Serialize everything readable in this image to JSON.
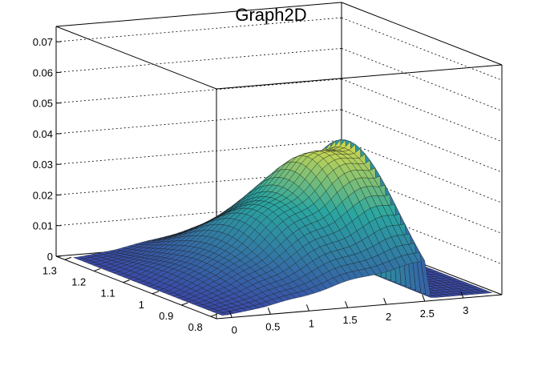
{
  "chart_data": {
    "type": "surface",
    "title": "Graph2D",
    "xlabel": "",
    "ylabel": "",
    "zlabel": "",
    "x_ticks": [
      "0",
      "0.5",
      "1",
      "1.5",
      "2",
      "2.5",
      "3"
    ],
    "y_ticks": [
      "0.8",
      "0.9",
      "1",
      "1.1",
      "1.2",
      "1.3"
    ],
    "z_ticks": [
      "0",
      "0.01",
      "0.02",
      "0.03",
      "0.04",
      "0.05",
      "0.06",
      "0.07"
    ],
    "xlim": [
      -0.2,
      3.5
    ],
    "ylim": [
      0.78,
      1.33
    ],
    "zlim": [
      0,
      0.075
    ],
    "grid": true,
    "palette": "viridis-like",
    "colors": {
      "low": "#3a4aa8",
      "mid": "#2aa6a0",
      "high": "#f6e43a"
    },
    "surface_profile": {
      "x": [
        0,
        0.5,
        1.0,
        1.5,
        2.0,
        2.3,
        2.5,
        2.6,
        2.65,
        2.7,
        3.0,
        3.3
      ],
      "z_peak": [
        0.0,
        0.006,
        0.015,
        0.026,
        0.036,
        0.04,
        0.042,
        0.044,
        0.0005,
        0.0,
        0.0,
        0.0
      ]
    }
  }
}
